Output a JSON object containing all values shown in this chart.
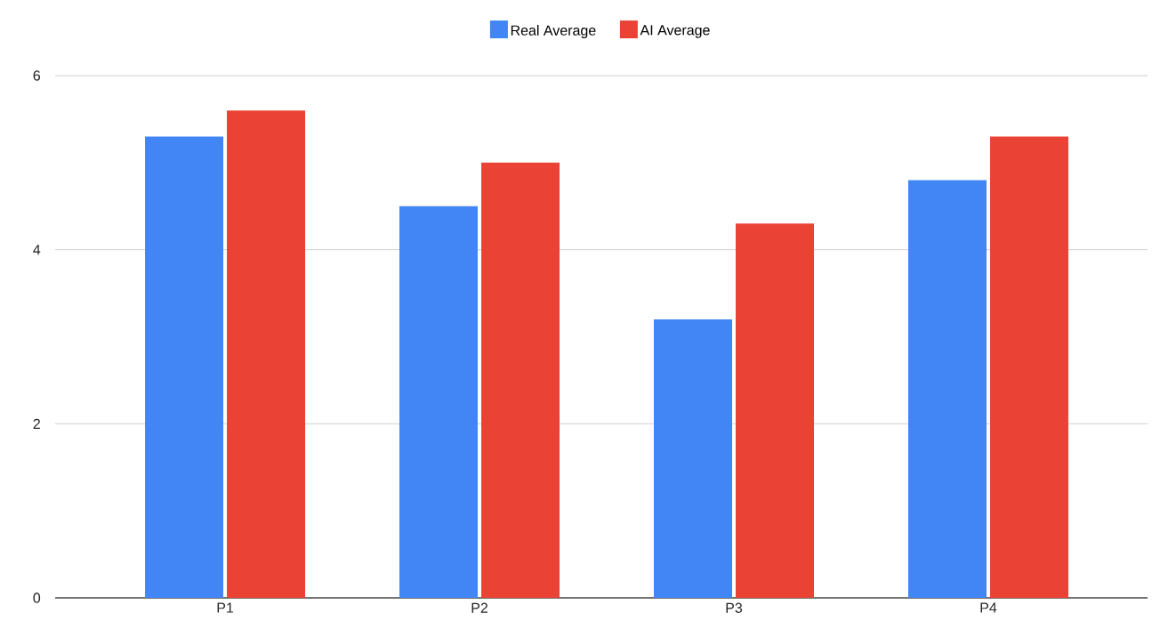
{
  "chart_data": {
    "type": "bar",
    "categories": [
      "P1",
      "P2",
      "P3",
      "P4"
    ],
    "series": [
      {
        "name": "Real Average",
        "color": "#4285f4",
        "values": [
          5.3,
          4.5,
          3.2,
          4.8
        ]
      },
      {
        "name": "AI Average",
        "color": "#ea4335",
        "values": [
          5.6,
          5.0,
          4.3,
          5.3
        ]
      }
    ],
    "ylim": [
      0,
      6
    ],
    "yticks": [
      0,
      2,
      4,
      6
    ],
    "grid": "y",
    "legend": "top"
  }
}
